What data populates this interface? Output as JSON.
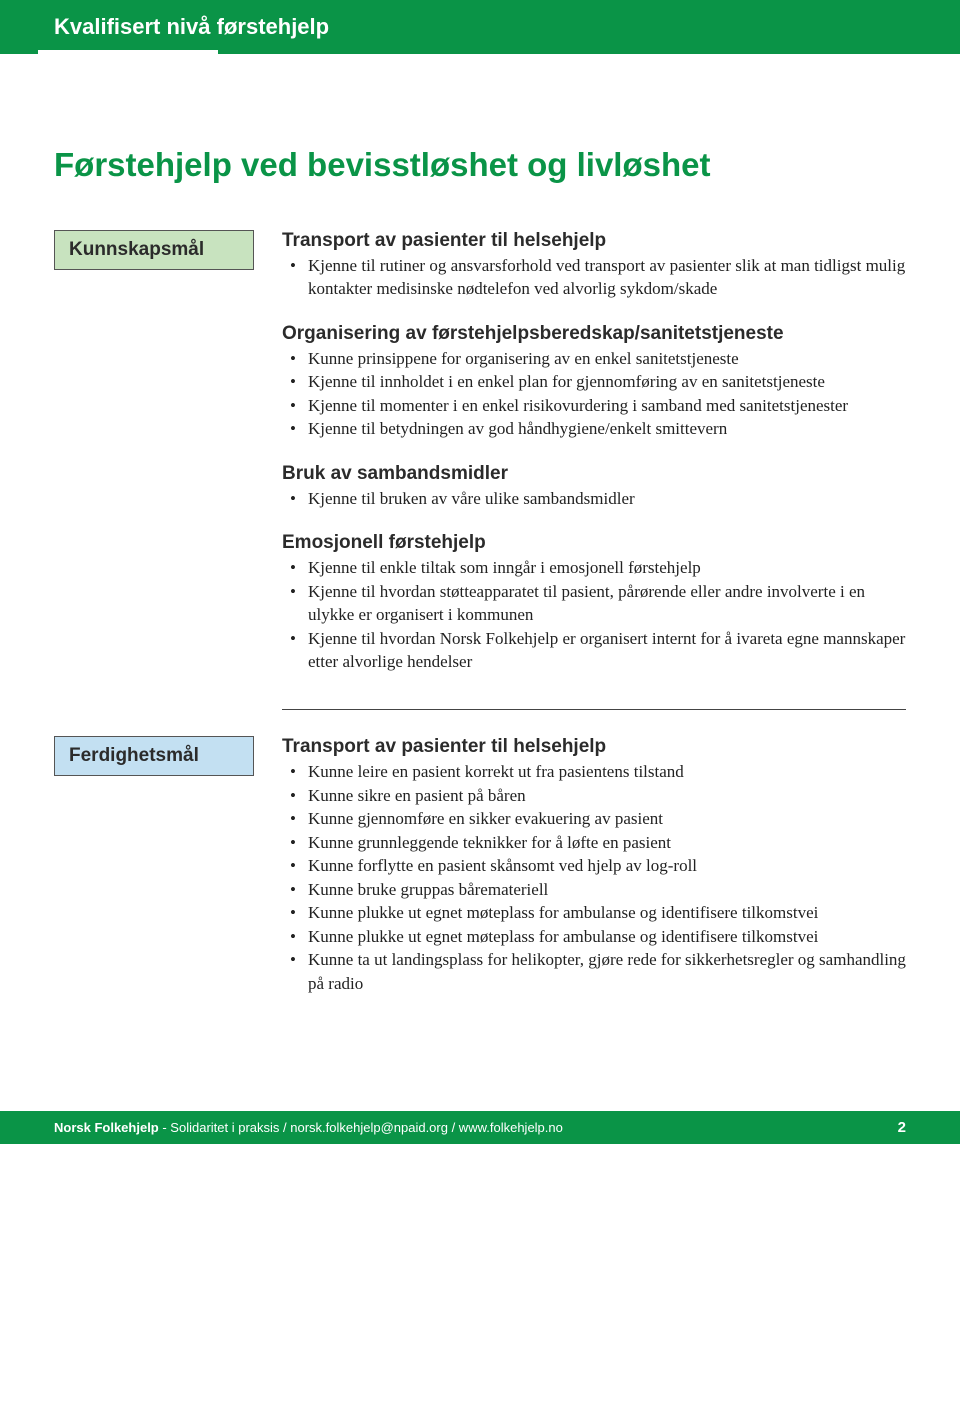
{
  "header": {
    "title": "Kvalifisert nivå førstehjelp"
  },
  "mainTitle": "Førstehjelp ved bevisstløshet og livløshet",
  "labels": {
    "knowledge": "Kunnskapsmål",
    "skills": "Ferdighetsmål"
  },
  "knowledge": {
    "s1": {
      "heading": "Transport av pasienter til helsehjelp",
      "items": [
        "Kjenne til rutiner og ansvarsforhold ved transport av pasienter slik at man tidligst mulig kontakter medisinske nødtelefon ved alvorlig sykdom/skade"
      ]
    },
    "s2": {
      "heading": "Organisering av førstehjelpsberedskap/sanitetstjeneste",
      "items": [
        "Kunne prinsippene for organisering av en enkel sanitetstjeneste",
        "Kjenne til innholdet i en enkel plan for gjennomføring av en sanitetstjeneste",
        "Kjenne til momenter i en enkel risikovurdering i samband med sanitetstjenester",
        "Kjenne til betydningen av god håndhygiene/enkelt smittevern"
      ]
    },
    "s3": {
      "heading": "Bruk av sambandsmidler",
      "items": [
        "Kjenne til bruken av våre ulike sambandsmidler"
      ]
    },
    "s4": {
      "heading": "Emosjonell førstehjelp",
      "items": [
        "Kjenne til enkle tiltak som inngår i emosjonell førstehjelp",
        "Kjenne til hvordan støtteapparatet til pasient, pårørende eller andre involverte i en ulykke er organisert i kommunen",
        "Kjenne til hvordan Norsk Folkehjelp er organisert internt for å ivareta egne mannskaper etter alvorlige hendelser"
      ]
    }
  },
  "skills": {
    "s1": {
      "heading": "Transport av pasienter til helsehjelp",
      "items": [
        "Kunne leire en pasient korrekt ut fra pasientens tilstand",
        "Kunne sikre en pasient på båren",
        "Kunne gjennomføre en sikker evakuering av pasient",
        "Kunne grunnleggende teknikker for å løfte en pasient",
        "Kunne forflytte en pasient skånsomt ved hjelp av log-roll",
        "Kunne bruke gruppas båremateriell",
        "Kunne plukke ut egnet møteplass for ambulanse og identifisere tilkomstvei",
        "Kunne plukke ut egnet møteplass for ambulanse og identifisere tilkomstvei",
        "Kunne ta ut landingsplass for helikopter, gjøre rede for sikkerhetsregler og samhandling på radio"
      ]
    }
  },
  "footer": {
    "org": "Norsk Folkehjelp",
    "tag": " - Solidaritet i praksis / norsk.folkehjelp@npaid.org / www.folkehjelp.no",
    "page": "2"
  },
  "colors": {
    "brandGreen": "#0a9447",
    "labelGreen": "#c8e3bf",
    "labelBlue": "#c3e0f2"
  }
}
